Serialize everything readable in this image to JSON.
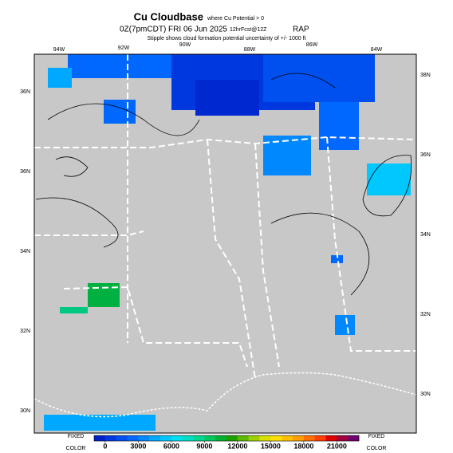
{
  "map": {
    "title": "Cu Cloudbase",
    "title_note": "where Cu Potential > 0",
    "valid": "0Z(7pmCDT) FRI 06 Jun 2025",
    "forecast": "12hrFcst@12Z",
    "model": "RAP",
    "subtitle": "Stipple shows cloud formation potential uncertainty of +/- 1000 ft",
    "lon_labels": [
      "94W",
      "92W",
      "90W",
      "88W",
      "86W",
      "84W"
    ],
    "lat_labels_left": [
      "36N",
      "36N",
      "34N",
      "32N",
      "30N"
    ],
    "lat_labels_right": [
      "38N",
      "36N",
      "34N",
      "32N",
      "30N"
    ],
    "left_key": [
      "FIXED",
      "COLOR"
    ],
    "right_key": [
      "FIXED",
      "COLOR"
    ],
    "colorbar": {
      "lim": [
        -1000,
        23000
      ],
      "ticks": [
        0,
        3000,
        6000,
        9000,
        12000,
        15000,
        18000,
        21000
      ],
      "colors": [
        "#0020c8",
        "#0038e0",
        "#0050f0",
        "#0068ff",
        "#0088ff",
        "#00a8ff",
        "#00c8ff",
        "#00e0f0",
        "#00e0c0",
        "#00d890",
        "#00c860",
        "#00b030",
        "#20a000",
        "#60b800",
        "#a0d000",
        "#d8e000",
        "#ffe000",
        "#ffc000",
        "#ffa000",
        "#ff7000",
        "#ff4000",
        "#e00000",
        "#a00040",
        "#700070"
      ]
    }
  }
}
